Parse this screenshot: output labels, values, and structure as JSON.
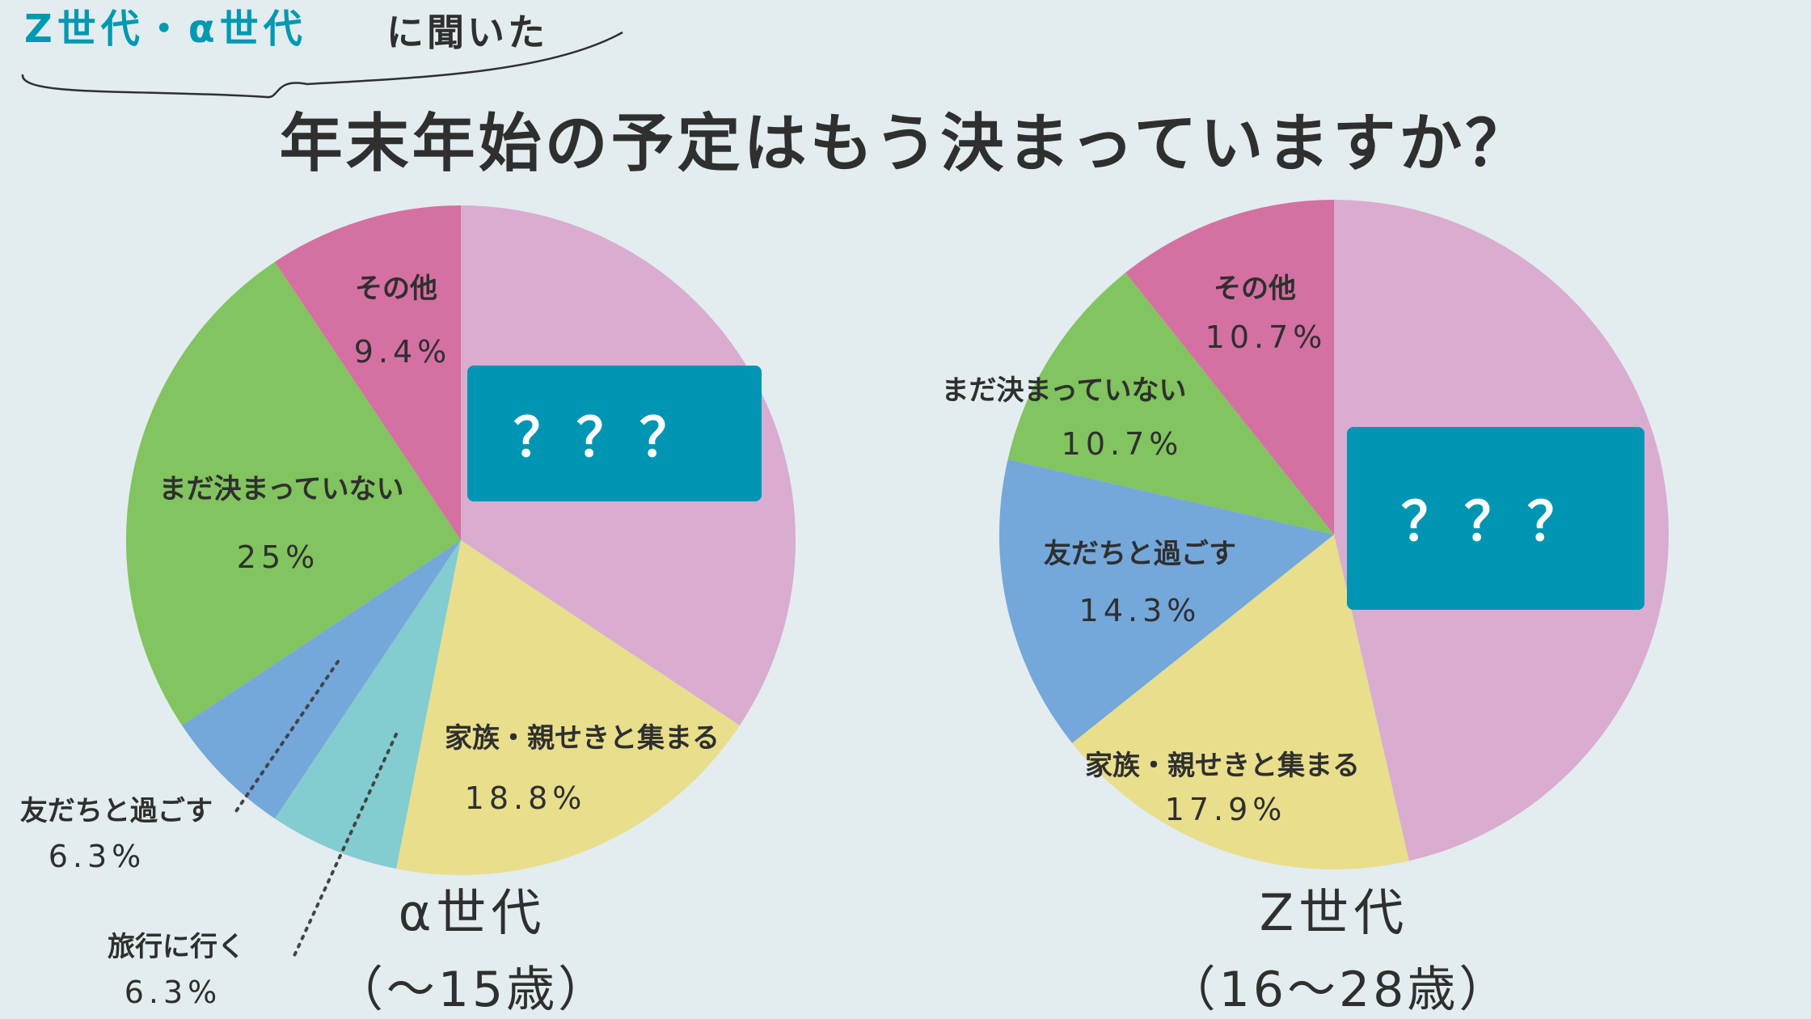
{
  "header": {
    "accent_text": "Z世代・α世代",
    "suffix_text": "に聞いた"
  },
  "title": "年末年始の予定はもう決まっていますか？",
  "colors": {
    "background": "#e3ecef",
    "accent": "#0099b2",
    "text": "#2f2f2f",
    "hidden_box": "#0096b3",
    "hidden_box_text": "#ffffff"
  },
  "chart_data": [
    {
      "type": "pie",
      "caption_main": "α世代",
      "caption_sub": "（〜15歳）",
      "slices": [
        {
          "label": "",
          "value": 34.4,
          "display": "？？？",
          "hidden": true,
          "color": "#d9acd0"
        },
        {
          "label": "家族・親せきと集まる",
          "value": 18.8,
          "display": "18.8%",
          "color": "#e8de8c"
        },
        {
          "label": "旅行に行く",
          "value": 6.3,
          "display": "6.3%",
          "color": "#83ccd0"
        },
        {
          "label": "友だちと過ごす",
          "value": 6.3,
          "display": "6.3%",
          "color": "#74a7da"
        },
        {
          "label": "まだ決まっていない",
          "value": 25,
          "display": "25%",
          "color": "#82c45f"
        },
        {
          "label": "その他",
          "value": 9.4,
          "display": "9.4%",
          "color": "#d570a2"
        }
      ]
    },
    {
      "type": "pie",
      "caption_main": "Z世代",
      "caption_sub": "（16〜28歳）",
      "slices": [
        {
          "label": "",
          "value": 46.4,
          "display": "？？？",
          "hidden": true,
          "color": "#d9acd0"
        },
        {
          "label": "家族・親せきと集まる",
          "value": 17.9,
          "display": "17.9%",
          "color": "#e8de8c"
        },
        {
          "label": "友だちと過ごす",
          "value": 14.3,
          "display": "14.3%",
          "color": "#74a7da"
        },
        {
          "label": "まだ決まっていない",
          "value": 10.7,
          "display": "10.7%",
          "color": "#82c45f"
        },
        {
          "label": "その他",
          "value": 10.7,
          "display": "10.7%",
          "color": "#d570a2"
        }
      ]
    }
  ]
}
